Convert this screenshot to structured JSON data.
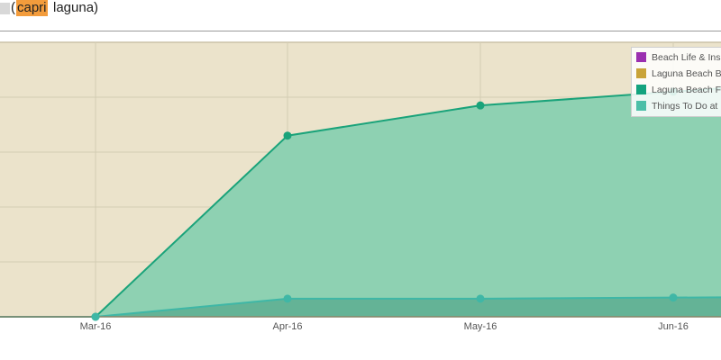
{
  "query": {
    "open_paren": "(",
    "highlight": "capri",
    "rest": "laguna)"
  },
  "colors": {
    "plot_background": "#ebe3cb",
    "grid": "#d3ccb3",
    "area_main_fill": "#8ed1b2",
    "area_main_line": "#1aa37a",
    "area_low_fill": "#64b396",
    "area_low_line": "#3fb7a6"
  },
  "chart_data": {
    "type": "area",
    "x": [
      "Mar-16",
      "Apr-16",
      "May-16",
      "Jun-16"
    ],
    "grid": true,
    "legend_position": "top-right",
    "series": [
      {
        "name": "Beach Life & Ins",
        "color": "#9b30b0",
        "values": [
          0,
          0,
          0,
          0
        ]
      },
      {
        "name": "Laguna Beach B",
        "color": "#c9a43a",
        "values": [
          0,
          0,
          0,
          0
        ]
      },
      {
        "name": "Laguna Beach F",
        "color": "#14a37f",
        "values": [
          0,
          3.3,
          3.85,
          4.1
        ]
      },
      {
        "name": "Things To Do at",
        "color": "#4cbfa8",
        "values": [
          0,
          0.33,
          0.33,
          0.35
        ]
      }
    ],
    "ylim": [
      0,
      5
    ]
  }
}
